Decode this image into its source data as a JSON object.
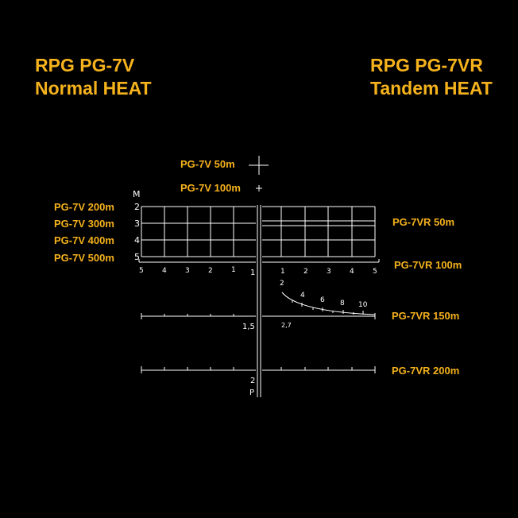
{
  "titles": {
    "left": {
      "line1": "RPG PG-7V",
      "line2": "Normal HEAT"
    },
    "right": {
      "line1": "RPG PG-7VR",
      "line2": "Tandem HEAT"
    }
  },
  "labels": {
    "pg7v_50": "PG-7V 50m",
    "pg7v_100": "PG-7V 100m",
    "pg7v_200": "PG-7V 200m",
    "pg7v_300": "PG-7V 300m",
    "pg7v_400": "PG-7V 400m",
    "pg7v_500": "PG-7V 500m",
    "pg7vr_50": "PG-7VR 50m",
    "pg7vr_100": "PG-7VR 100m",
    "pg7vr_150": "PG-7VR 150m",
    "pg7vr_200": "PG-7VR 200m"
  },
  "reticle": {
    "range_unit": "M",
    "range_marks": [
      "2",
      "3",
      "4",
      "5"
    ],
    "left_scale": [
      "5",
      "4",
      "3",
      "2",
      "1"
    ],
    "right_scale": [
      "1",
      "2",
      "3",
      "4",
      "5"
    ],
    "center_marks": [
      "1",
      "1,5",
      "2"
    ],
    "bottom_letter": "P",
    "curve_marks": [
      "2",
      "4",
      "6",
      "8",
      "10"
    ],
    "curve_base": "2,7"
  },
  "colors": {
    "label": "#f5b21c",
    "reticle": "#ffffff",
    "background": "#000000"
  }
}
